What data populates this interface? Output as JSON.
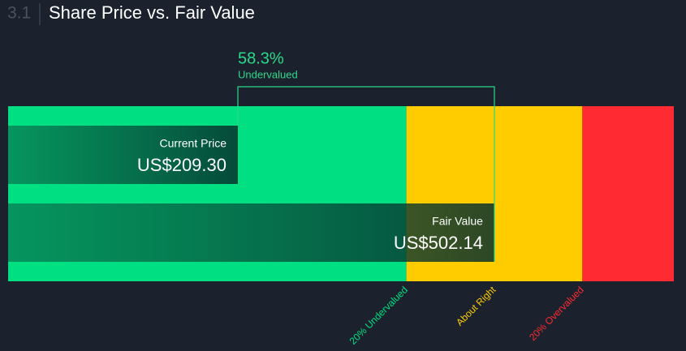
{
  "section": "3.1",
  "chart_data": {
    "type": "bar",
    "orientation": "horizontal",
    "title": "Share Price vs. Fair Value",
    "categories": [
      "Current Price",
      "Fair Value"
    ],
    "values": [
      209.3,
      502.14
    ],
    "value_labels": [
      "US$209.30",
      "US$502.14"
    ],
    "xlim": [
      -53,
      707
    ],
    "zones": [
      {
        "label": "20% Undervalued",
        "from": -53,
        "to": 401.71,
        "color": "#00e082"
      },
      {
        "label": "About Right",
        "from": 401.71,
        "to": 602.57,
        "color": "#ffcc00"
      },
      {
        "label": "20% Overvalued",
        "from": 602.57,
        "to": 707,
        "color": "#ff2a32"
      }
    ],
    "annotation": {
      "value": 58.3,
      "label": "58.3%",
      "text": "Undervalued",
      "color": "#2bd98a"
    }
  }
}
